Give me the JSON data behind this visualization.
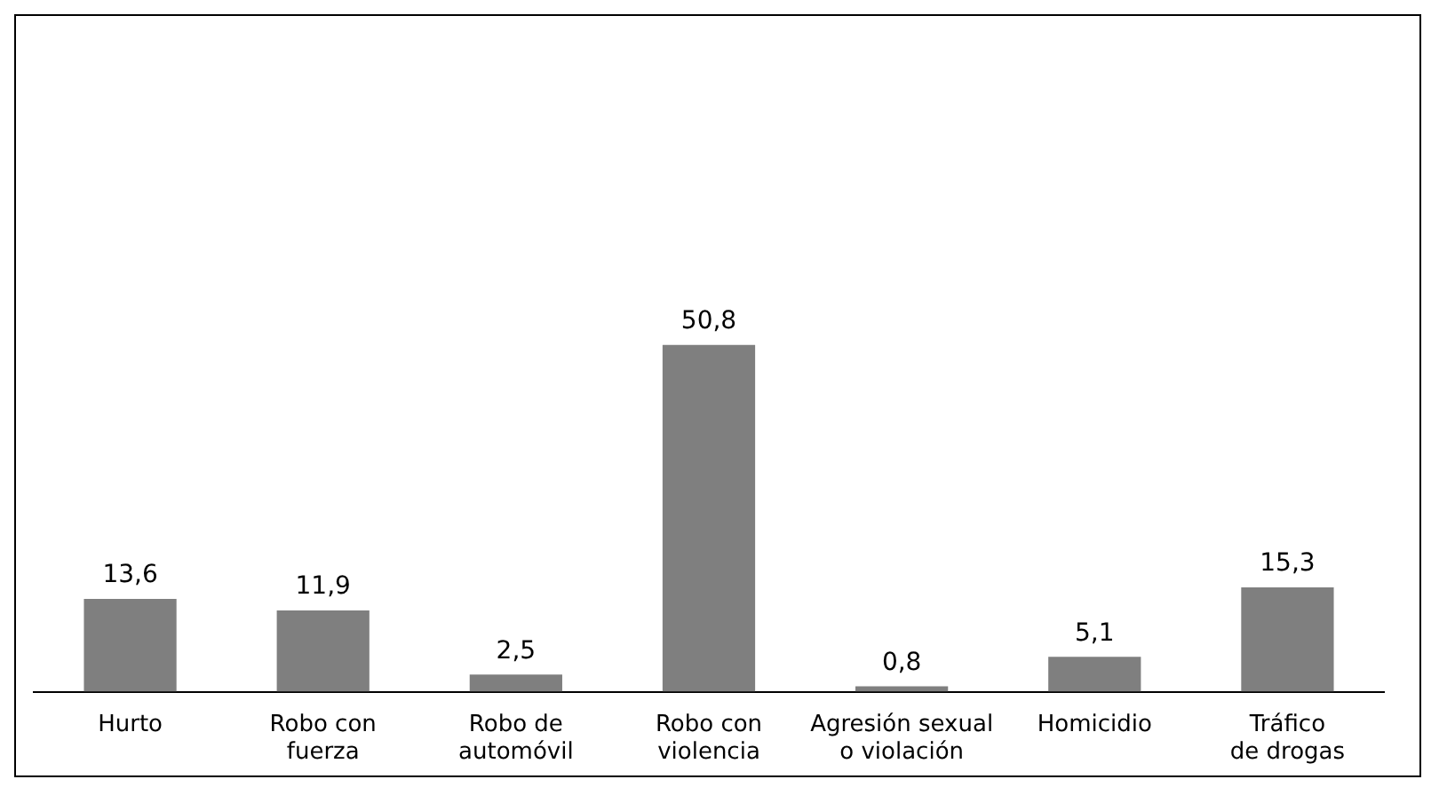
{
  "chart_data": {
    "type": "bar",
    "categories": [
      "Hurto",
      "Robo con fuerza",
      "Robo de automóvil",
      "Robo con violencia",
      "Agresión sexual o violación",
      "Homicidio",
      "Tráfico de drogas"
    ],
    "values": [
      13.6,
      11.9,
      2.5,
      50.8,
      0.8,
      5.1,
      15.3
    ],
    "value_labels": [
      "13,6",
      "11,9",
      "2,5",
      "50,8",
      "0,8",
      "5,1",
      "15,3"
    ],
    "color": "#7f7f7f",
    "grid": false,
    "legend": false
  }
}
